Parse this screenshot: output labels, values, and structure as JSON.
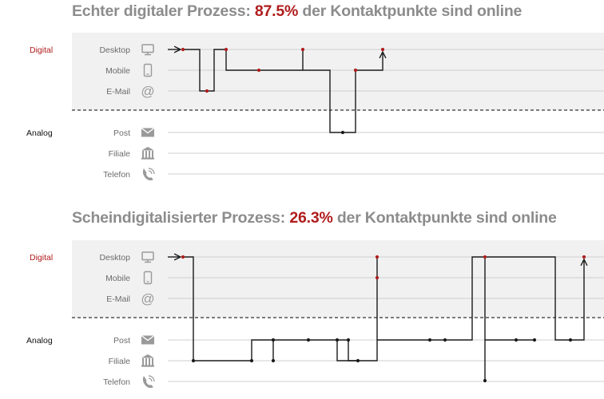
{
  "section1": {
    "title_prefix": "Echter digitaler Prozess:",
    "title_percent": "87.5%",
    "title_suffix": "der Kontaktpunkte sind online"
  },
  "section2": {
    "title_prefix": "Scheindigitalisierter Prozess:",
    "title_percent": "26.3%",
    "title_suffix": "der Kontaktpunkte sind online"
  },
  "groups": {
    "digital": "Digital",
    "analog": "Analog"
  },
  "channels": [
    {
      "label": "Desktop",
      "group": "digital",
      "icon": "monitor-icon"
    },
    {
      "label": "Mobile",
      "group": "digital",
      "icon": "smartphone-icon"
    },
    {
      "label": "E-Mail",
      "group": "digital",
      "icon": "at-sign-icon"
    },
    {
      "label": "Post",
      "group": "analog",
      "icon": "envelope-icon"
    },
    {
      "label": "Filiale",
      "group": "analog",
      "icon": "bank-building-icon"
    },
    {
      "label": "Telefon",
      "group": "analog",
      "icon": "phone-icon"
    }
  ],
  "colors": {
    "title_gray": "#8c8c8c",
    "accent_red": "#b01c1c",
    "digital_band": "#f1f1f1",
    "lane_line": "#cfcfcf",
    "path": "#1a1a1a"
  }
}
